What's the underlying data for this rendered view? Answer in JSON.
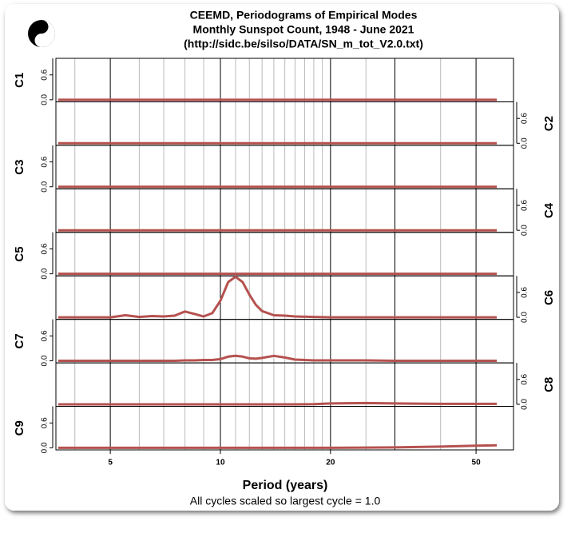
{
  "chart_data": {
    "type": "line",
    "title": [
      "CEEMD, Periodograms of Empirical Modes",
      "Monthly Sunspot Count, 1948 - June 2021",
      "(http://sidc.be/silso/DATA/SN_m_tot_V2.0.txt)"
    ],
    "x_label": "Period (years)",
    "note": "All cycles scaled so largest cycle = 1.0",
    "log_x": true,
    "xlim": [
      3.55,
      63.3
    ],
    "xticks": [
      5,
      10,
      20,
      50
    ],
    "xgrid_major": [
      30
    ],
    "xgrid_minor": [
      4,
      6,
      7,
      8,
      9,
      11,
      12,
      13,
      14,
      15,
      16,
      17,
      18,
      19,
      25,
      40
    ],
    "ylim": [
      -0.05,
      1.0
    ],
    "yticks": [
      {
        "value": 0,
        "label": "0.0"
      },
      {
        "value": 0.6,
        "label": "0.6"
      }
    ],
    "x": [
      3.6,
      4,
      4.5,
      5,
      5.5,
      6,
      6.5,
      7,
      7.5,
      8,
      8.5,
      9,
      9.5,
      10,
      10.5,
      11,
      11.5,
      12,
      12.5,
      13,
      14,
      15,
      16,
      18,
      20,
      25,
      30,
      40,
      50,
      57
    ],
    "series": [
      {
        "name": "C1",
        "color": "#b5524f",
        "values": [
          0,
          0,
          0,
          0,
          0,
          0,
          0,
          0,
          0,
          0,
          0,
          0,
          0,
          0,
          0,
          0,
          0,
          0,
          0,
          0,
          0,
          0,
          0,
          0,
          0,
          0,
          0,
          0,
          0,
          0
        ]
      },
      {
        "name": "C2",
        "color": "#b5524f",
        "values": [
          0,
          0,
          0,
          0,
          0,
          0,
          0,
          0,
          0,
          0,
          0,
          0,
          0,
          0,
          0,
          0,
          0,
          0,
          0,
          0,
          0,
          0,
          0,
          0,
          0,
          0,
          0,
          0,
          0,
          0
        ]
      },
      {
        "name": "C3",
        "color": "#b5524f",
        "values": [
          0,
          0,
          0,
          0,
          0,
          0,
          0,
          0,
          0,
          0,
          0,
          0,
          0,
          0,
          0,
          0,
          0,
          0,
          0,
          0,
          0,
          0,
          0,
          0,
          0,
          0,
          0,
          0,
          0,
          0
        ]
      },
      {
        "name": "C4",
        "color": "#b5524f",
        "values": [
          0,
          0,
          0,
          0,
          0,
          0,
          0,
          0,
          0,
          0,
          0,
          0,
          0,
          0,
          0,
          0,
          0,
          0,
          0,
          0,
          0,
          0,
          0,
          0,
          0,
          0,
          0,
          0,
          0,
          0
        ]
      },
      {
        "name": "C5",
        "color": "#b5524f",
        "values": [
          0,
          0,
          0,
          0,
          0,
          0,
          0,
          0,
          0,
          0,
          0,
          0,
          0,
          0,
          0,
          0,
          0,
          0,
          0,
          0,
          0,
          0,
          0,
          0,
          0,
          0,
          0,
          0,
          0,
          0
        ]
      },
      {
        "name": "C6",
        "color": "#b5524f",
        "values": [
          0,
          0,
          0,
          0,
          0.05,
          0.01,
          0.03,
          0.02,
          0.04,
          0.14,
          0.08,
          0.02,
          0.1,
          0.4,
          0.85,
          0.98,
          0.85,
          0.55,
          0.3,
          0.15,
          0.05,
          0.04,
          0.02,
          0.01,
          0,
          0,
          0,
          0,
          0,
          0
        ]
      },
      {
        "name": "C7",
        "color": "#b5524f",
        "values": [
          0,
          0,
          0,
          0,
          0,
          0,
          0,
          0,
          0,
          0.01,
          0.01,
          0.02,
          0.02,
          0.04,
          0.1,
          0.12,
          0.1,
          0.06,
          0.05,
          0.07,
          0.12,
          0.08,
          0.03,
          0.01,
          0.01,
          0.01,
          0,
          0,
          0,
          0
        ]
      },
      {
        "name": "C8",
        "color": "#b5524f",
        "values": [
          0,
          0,
          0,
          0,
          0,
          0,
          0,
          0,
          0,
          0,
          0,
          0,
          0,
          0,
          0,
          0,
          0,
          0,
          0,
          0,
          0,
          0,
          0,
          0.005,
          0.02,
          0.03,
          0.02,
          0.01,
          0.01,
          0.01
        ]
      },
      {
        "name": "C9",
        "color": "#b5524f",
        "values": [
          0,
          0,
          0,
          0,
          0,
          0,
          0,
          0,
          0,
          0,
          0,
          0,
          0,
          0,
          0,
          0,
          0,
          0,
          0,
          0,
          0,
          0,
          0,
          0,
          0,
          0.005,
          0.01,
          0.03,
          0.05,
          0.06
        ]
      }
    ]
  }
}
